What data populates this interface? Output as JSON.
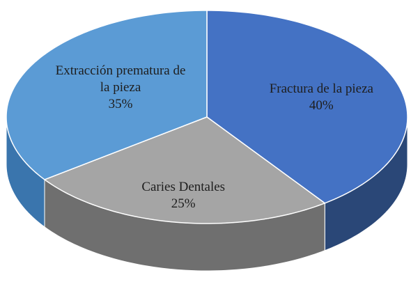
{
  "chart_data": {
    "type": "pie",
    "categories": [
      "Fractura de la pieza",
      "Caries Dentales",
      "Extracción prematura de la pieza"
    ],
    "values": [
      40,
      25,
      35
    ],
    "value_labels": [
      "40%",
      "25%",
      "35%"
    ],
    "colors": [
      "#4472c4",
      "#a5a5a5",
      "#5b9bd5"
    ],
    "side_colors": [
      "#2a4777",
      "#6f6f6f",
      "#3a75ad"
    ]
  }
}
